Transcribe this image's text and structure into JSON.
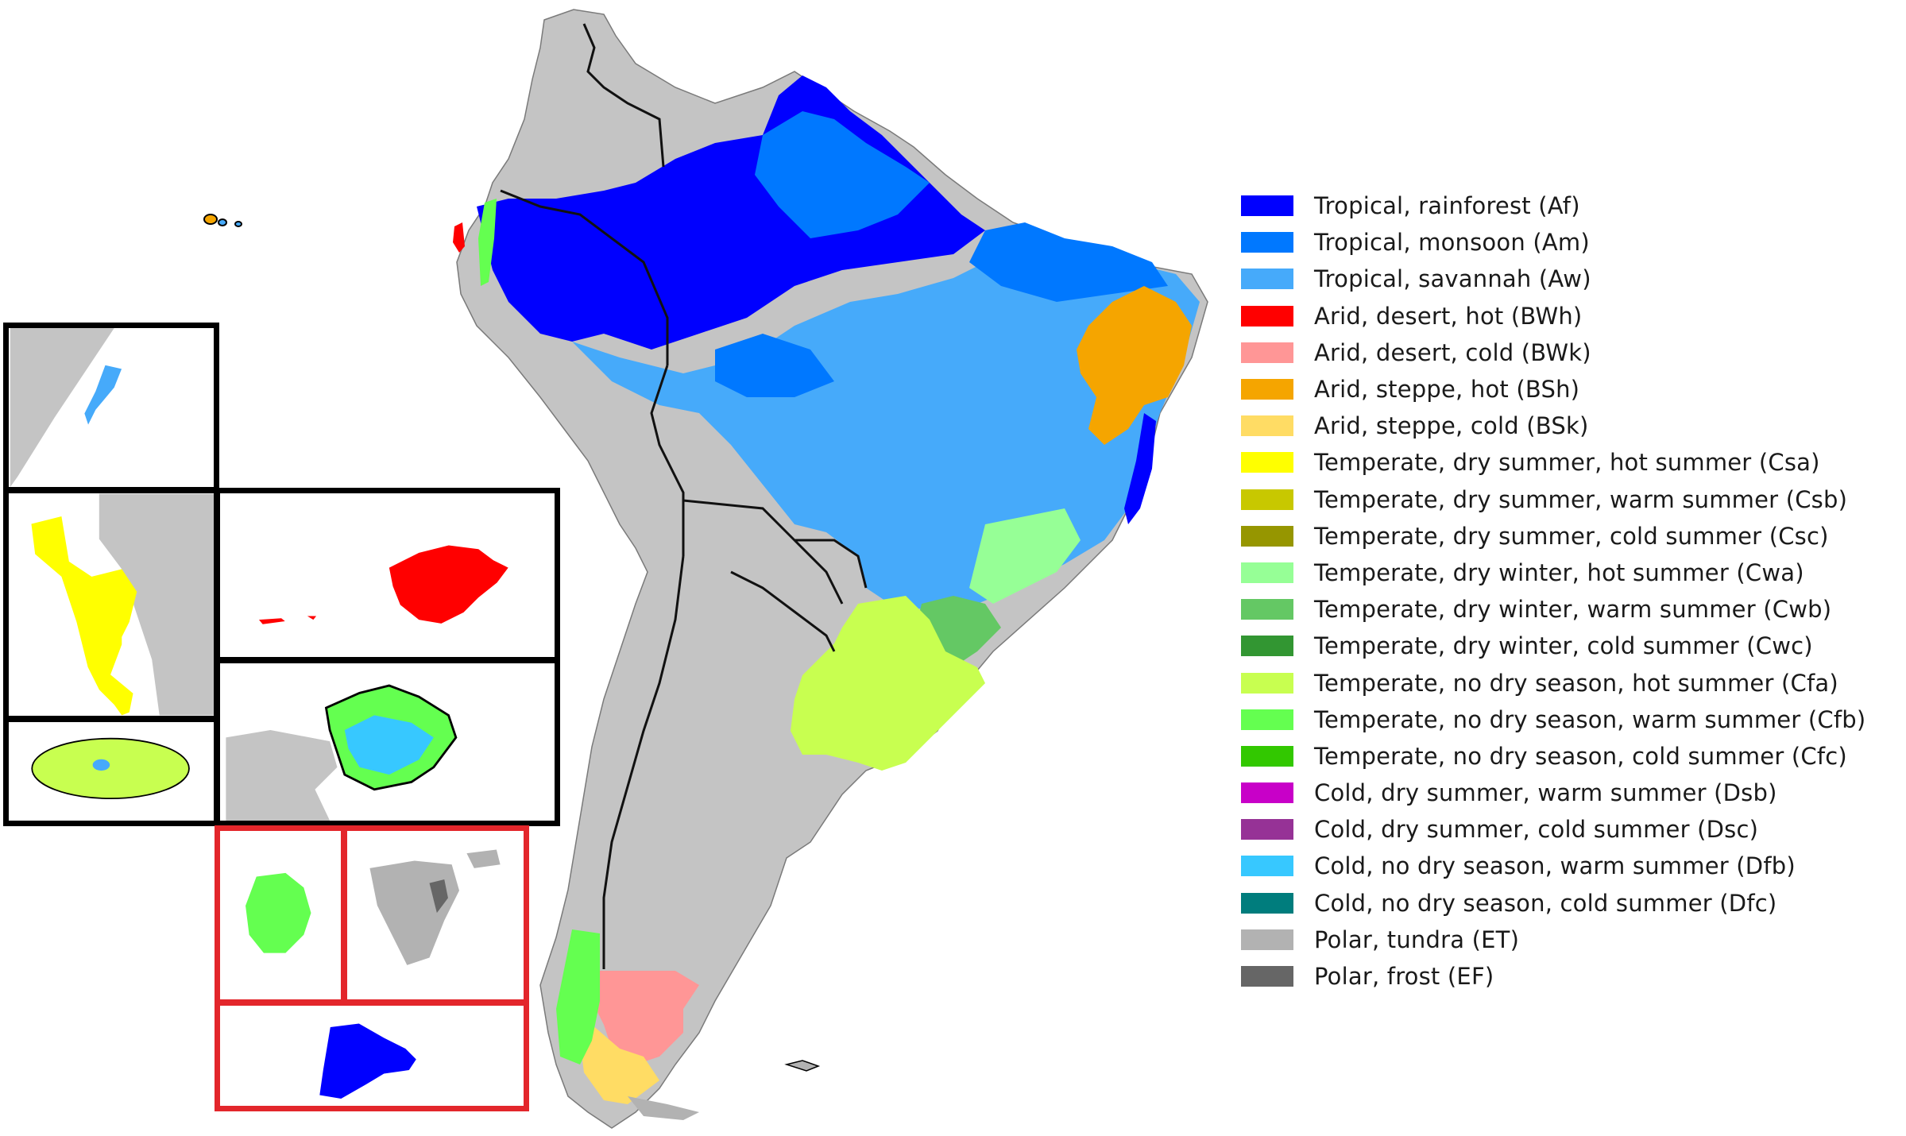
{
  "legend": {
    "items": [
      {
        "label": "Tropical, rainforest (Af)",
        "color": "#0000ff"
      },
      {
        "label": "Tropical, monsoon (Am)",
        "color": "#0078ff"
      },
      {
        "label": "Tropical, savannah (Aw)",
        "color": "#46aafa"
      },
      {
        "label": "Arid, desert, hot (BWh)",
        "color": "#ff0000"
      },
      {
        "label": "Arid, desert, cold (BWk)",
        "color": "#ff9696"
      },
      {
        "label": "Arid, steppe, hot (BSh)",
        "color": "#f5a500"
      },
      {
        "label": "Arid, steppe, cold (BSk)",
        "color": "#ffdc64"
      },
      {
        "label": "Temperate, dry summer, hot summer (Csa)",
        "color": "#ffff00"
      },
      {
        "label": "Temperate, dry summer, warm summer (Csb)",
        "color": "#c8c800"
      },
      {
        "label": "Temperate, dry summer, cold summer (Csc)",
        "color": "#969600"
      },
      {
        "label": "Temperate, dry winter, hot summer (Cwa)",
        "color": "#96ff96"
      },
      {
        "label": "Temperate, dry winter, warm summer (Cwb)",
        "color": "#64c864"
      },
      {
        "label": "Temperate, dry winter, cold summer (Cwc)",
        "color": "#329632"
      },
      {
        "label": "Temperate, no dry season, hot summer (Cfa)",
        "color": "#c8ff50"
      },
      {
        "label": "Temperate, no dry season, warm summer (Cfb)",
        "color": "#64ff50"
      },
      {
        "label": "Temperate, no dry season, cold summer (Cfc)",
        "color": "#32c800"
      },
      {
        "label": "Cold, dry summer, warm summer (Dsb)",
        "color": "#c800c8"
      },
      {
        "label": "Cold, dry summer, cold summer (Dsc)",
        "color": "#963296"
      },
      {
        "label": "Cold, no dry season, warm summer (Dfb)",
        "color": "#37c8ff"
      },
      {
        "label": "Cold, no dry season, cold summer (Dfc)",
        "color": "#007d7d"
      },
      {
        "label": "Polar, tundra (ET)",
        "color": "#b2b2b2"
      },
      {
        "label": "Polar, frost (EF)",
        "color": "#666666"
      }
    ]
  },
  "colors": {
    "land": "#c4c4c4",
    "border": "#000000",
    "inset_border_black": "#000000",
    "inset_border_red": "#e3262b"
  }
}
